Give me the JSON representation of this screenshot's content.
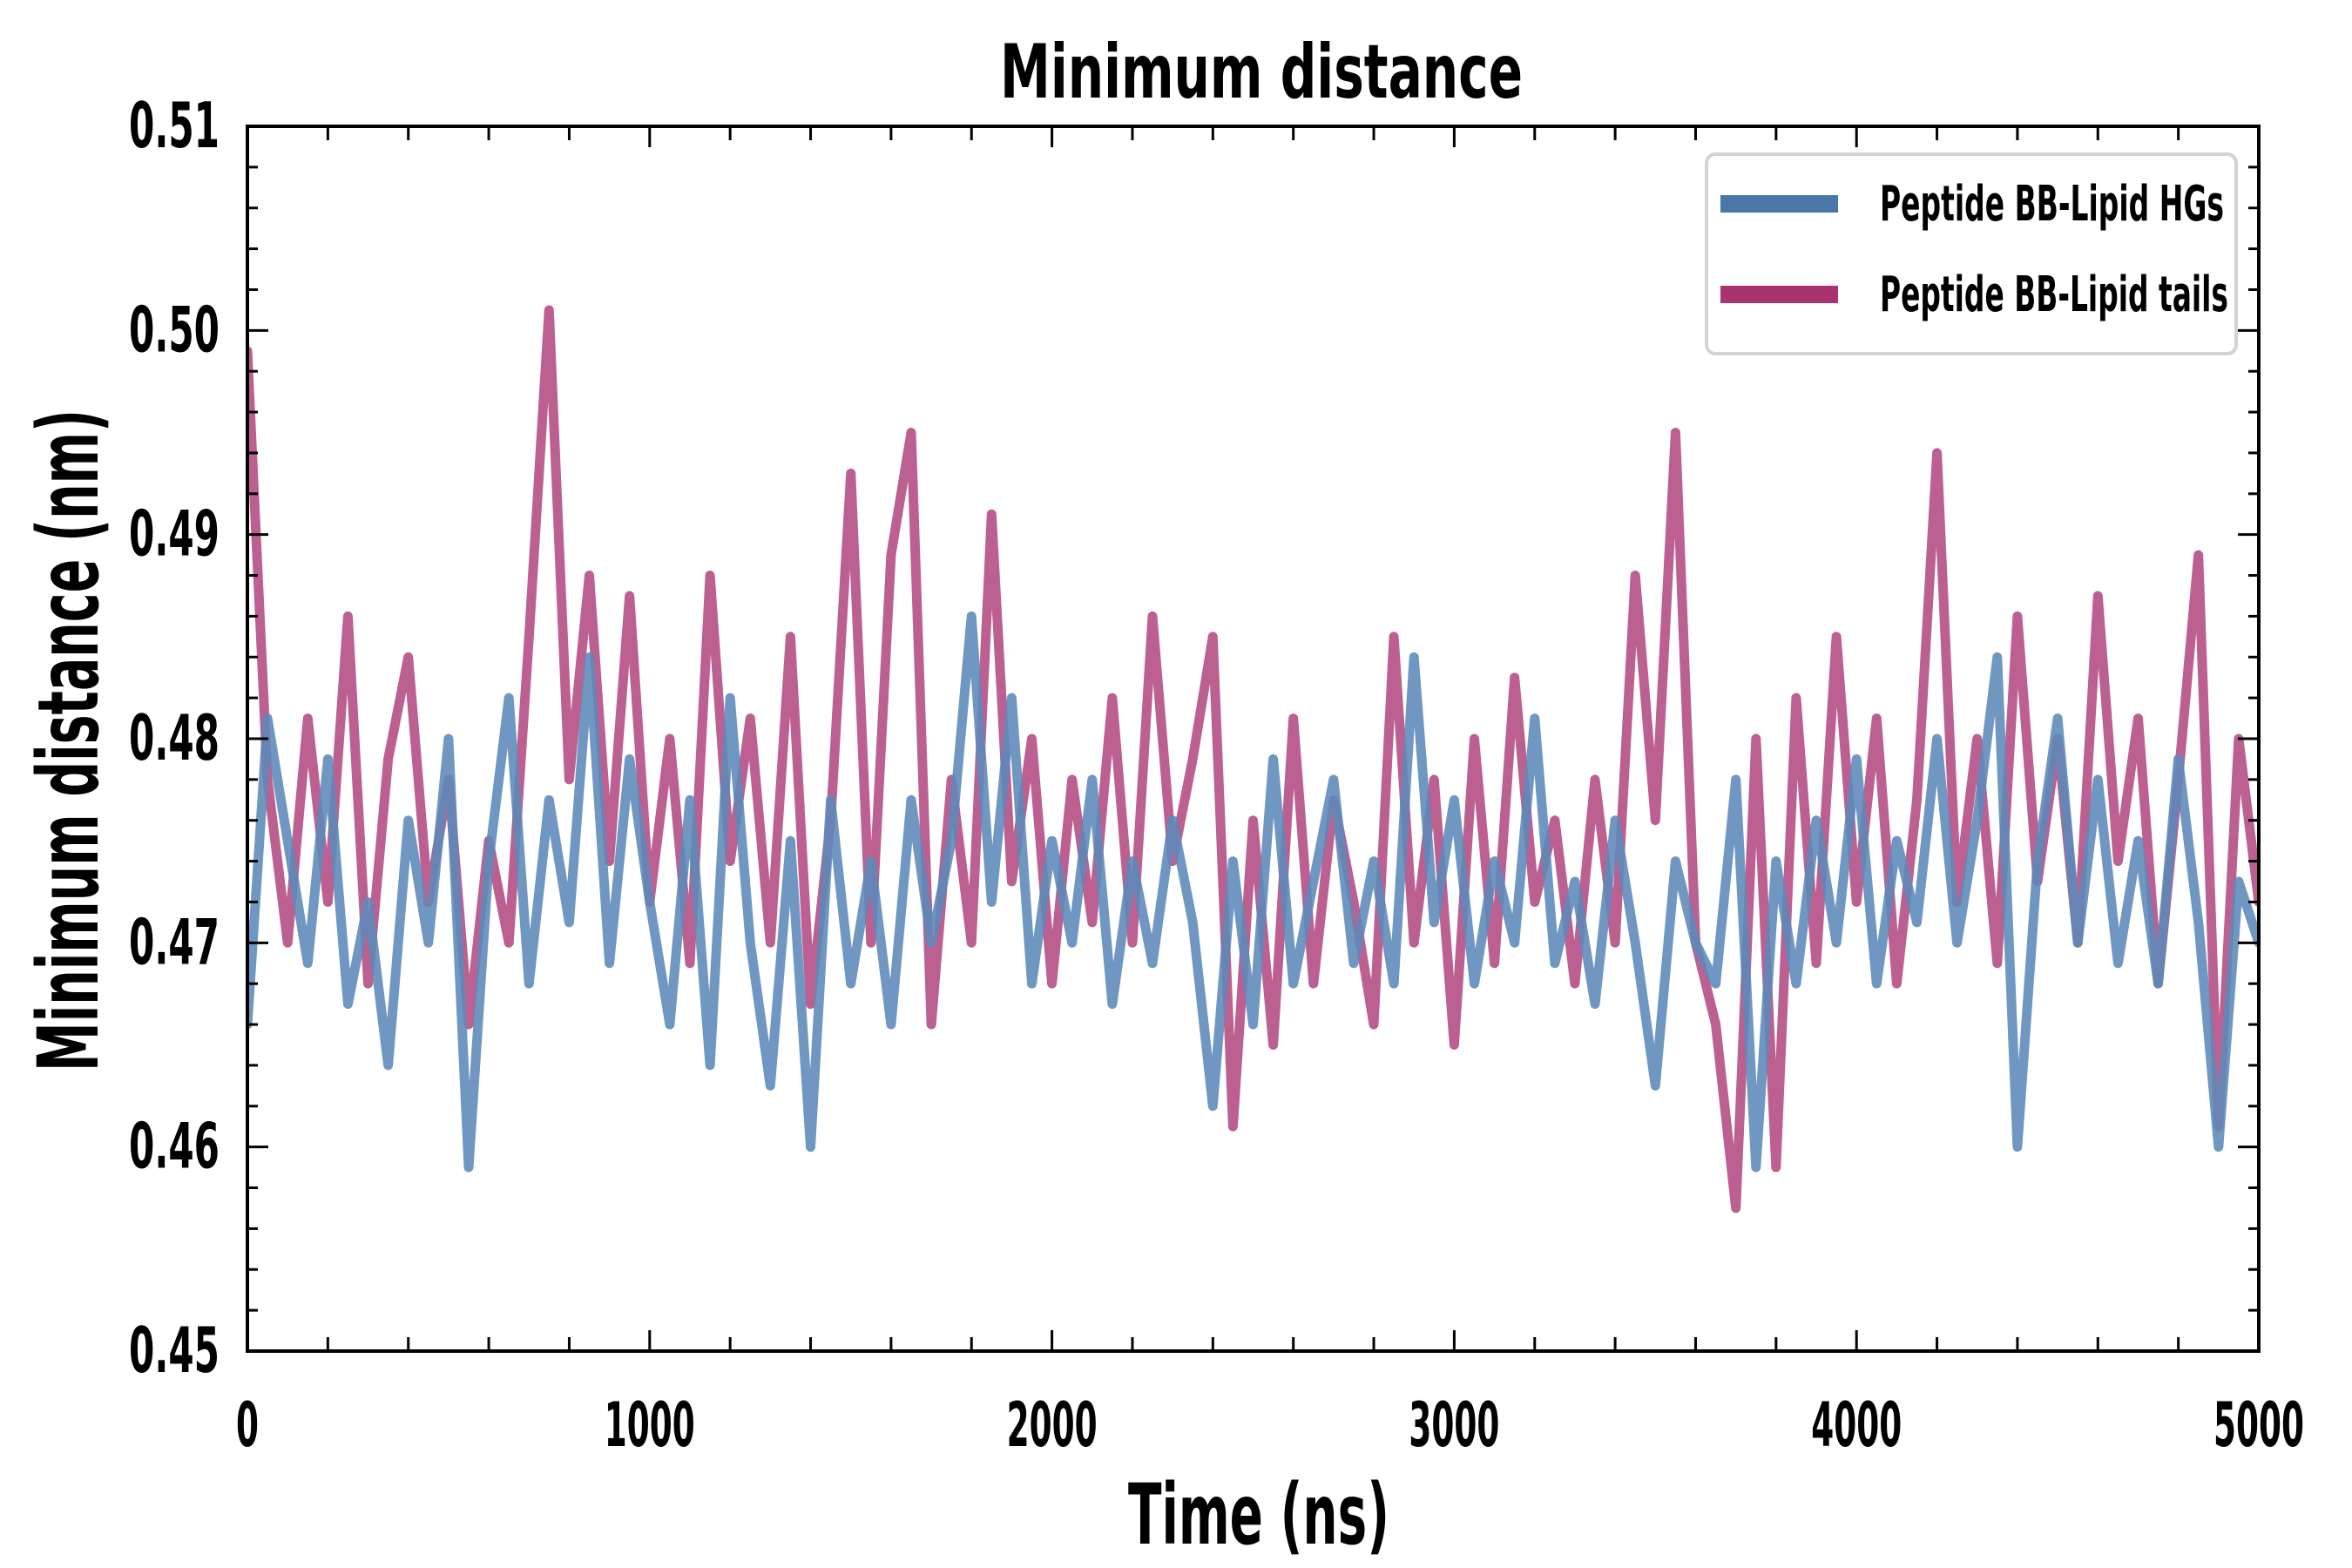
{
  "chart_data": {
    "type": "line",
    "title": "Minimum distance",
    "xlabel": "Time (ns)",
    "ylabel": "Minimum distance (nm)",
    "xlim": [
      0,
      5000
    ],
    "ylim": [
      0.45,
      0.51
    ],
    "xticks": [
      "0",
      "1000",
      "2000",
      "3000",
      "4000",
      "5000"
    ],
    "yticks": [
      "0.45",
      "0.46",
      "0.47",
      "0.48",
      "0.49",
      "0.50",
      "0.51"
    ],
    "grid": false,
    "legend_position": "top-right",
    "x_start": 0,
    "x_step": 50,
    "series": [
      {
        "name": "Peptide BB-Lipid HGs",
        "color": "#4a77a8",
        "values": [
          0.466,
          0.481,
          0.475,
          0.469,
          0.479,
          0.467,
          0.472,
          0.464,
          0.476,
          0.47,
          0.48,
          0.459,
          0.474,
          0.482,
          0.468,
          0.477,
          0.471,
          0.484,
          0.469,
          0.479,
          0.472,
          0.466,
          0.477,
          0.464,
          0.482,
          0.47,
          0.463,
          0.475,
          0.46,
          0.477,
          0.468,
          0.474,
          0.466,
          0.477,
          0.47,
          0.475,
          0.486,
          0.472,
          0.482,
          0.468,
          0.475,
          0.47,
          0.478,
          0.467,
          0.474,
          0.469,
          0.476,
          0.471,
          0.462,
          0.474,
          0.466,
          0.479,
          0.468,
          0.473,
          0.478,
          0.469,
          0.474,
          0.468,
          0.484,
          0.471,
          0.477,
          0.468,
          0.474,
          0.47,
          0.481,
          0.469,
          0.473,
          0.467,
          0.476,
          0.47,
          0.463,
          0.474,
          0.47,
          0.468,
          0.478,
          0.459,
          0.474,
          0.468,
          0.476,
          0.47,
          0.479,
          0.468,
          0.475,
          0.471,
          0.48,
          0.47,
          0.476,
          0.484,
          0.46,
          0.474,
          0.481,
          0.47,
          0.478,
          0.469,
          0.475,
          0.468,
          0.479,
          0.471,
          0.46,
          0.473,
          0.47
        ]
      },
      {
        "name": "Peptide BB-Lipid tails",
        "color": "#a8336f",
        "values": [
          0.499,
          0.478,
          0.47,
          0.481,
          0.472,
          0.486,
          0.468,
          0.479,
          0.484,
          0.472,
          0.478,
          0.466,
          0.475,
          0.47,
          0.485,
          0.501,
          0.478,
          0.488,
          0.474,
          0.487,
          0.472,
          0.48,
          0.469,
          0.488,
          0.474,
          0.481,
          0.47,
          0.485,
          0.467,
          0.476,
          0.493,
          0.47,
          0.489,
          0.495,
          0.466,
          0.478,
          0.47,
          0.491,
          0.473,
          0.48,
          0.468,
          0.478,
          0.471,
          0.482,
          0.47,
          0.486,
          0.474,
          0.479,
          0.485,
          0.461,
          0.476,
          0.465,
          0.481,
          0.468,
          0.477,
          0.472,
          0.466,
          0.485,
          0.47,
          0.478,
          0.465,
          0.48,
          0.469,
          0.483,
          0.472,
          0.476,
          0.468,
          0.478,
          0.47,
          0.488,
          0.476,
          0.495,
          0.47,
          0.466,
          0.457,
          0.48,
          0.459,
          0.482,
          0.469,
          0.485,
          0.472,
          0.481,
          0.468,
          0.477,
          0.494,
          0.472,
          0.48,
          0.469,
          0.486,
          0.473,
          0.48,
          0.47,
          0.487,
          0.474,
          0.481,
          0.468,
          0.478,
          0.489,
          0.461,
          0.48,
          0.472
        ]
      }
    ]
  }
}
